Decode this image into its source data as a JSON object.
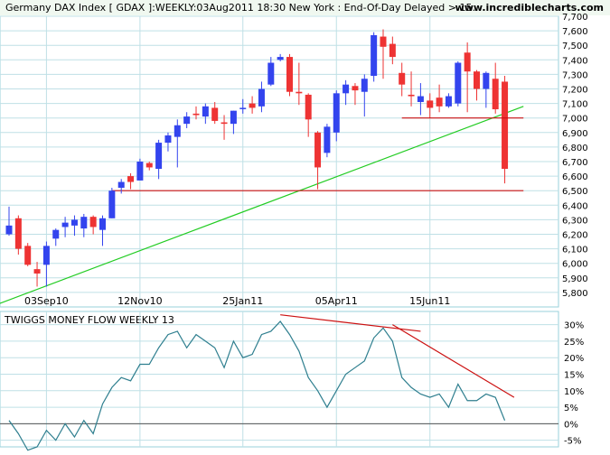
{
  "header": {
    "title": "Germany DAX Index [ GDAX ]:WEEKLY:03Aug2011 18:30 New York : End-Of-Day Delayed > 15..",
    "brand": "www.incrediblecharts.com"
  },
  "colors": {
    "up": "#3344ee",
    "down": "#ee3333",
    "trendline": "#22cc22",
    "support": "#cc1111",
    "indicator": "#2f7f8f",
    "grid": "#bfe0e6",
    "frame": "#9ad0db",
    "header_bg": "#f0f8f0"
  },
  "chart_data": [
    {
      "type": "candlestick",
      "ylim": [
        5700,
        7700
      ],
      "yticks": [
        5800,
        5900,
        6000,
        6100,
        6200,
        6300,
        6400,
        6500,
        6600,
        6700,
        6800,
        6900,
        7000,
        7100,
        7200,
        7300,
        7400,
        7500,
        7600,
        7700
      ],
      "ytick_labels": [
        "5,800",
        "5,900",
        "6,000",
        "6,100",
        "6,200",
        "6,300",
        "6,400",
        "6,500",
        "6,600",
        "6,700",
        "6,800",
        "6,900",
        "7,000",
        "7,100",
        "7,200",
        "7,300",
        "7,400",
        "7,500",
        "7,600",
        "7,700"
      ],
      "xtick_labels": [
        {
          "label": "03Sep10",
          "index": 4
        },
        {
          "label": "12Nov10",
          "index": 14
        },
        {
          "label": "25Jan11",
          "index": 25
        },
        {
          "label": "05Apr11",
          "index": 35
        },
        {
          "label": "15Jun11",
          "index": 45
        }
      ],
      "candles": [
        {
          "o": 6200,
          "h": 6390,
          "l": 6190,
          "c": 6260
        },
        {
          "o": 6310,
          "h": 6330,
          "l": 6060,
          "c": 6100
        },
        {
          "o": 6120,
          "h": 6140,
          "l": 5980,
          "c": 5990
        },
        {
          "o": 5960,
          "h": 6010,
          "l": 5840,
          "c": 5930
        },
        {
          "o": 5990,
          "h": 6150,
          "l": 5840,
          "c": 6120
        },
        {
          "o": 6170,
          "h": 6240,
          "l": 6120,
          "c": 6230
        },
        {
          "o": 6250,
          "h": 6320,
          "l": 6180,
          "c": 6280
        },
        {
          "o": 6260,
          "h": 6330,
          "l": 6190,
          "c": 6300
        },
        {
          "o": 6240,
          "h": 6340,
          "l": 6180,
          "c": 6320
        },
        {
          "o": 6320,
          "h": 6330,
          "l": 6200,
          "c": 6250
        },
        {
          "o": 6230,
          "h": 6330,
          "l": 6120,
          "c": 6310
        },
        {
          "o": 6310,
          "h": 6520,
          "l": 6310,
          "c": 6500
        },
        {
          "o": 6520,
          "h": 6580,
          "l": 6480,
          "c": 6560
        },
        {
          "o": 6600,
          "h": 6620,
          "l": 6510,
          "c": 6560
        },
        {
          "o": 6570,
          "h": 6720,
          "l": 6570,
          "c": 6700
        },
        {
          "o": 6690,
          "h": 6700,
          "l": 6640,
          "c": 6660
        },
        {
          "o": 6650,
          "h": 6850,
          "l": 6580,
          "c": 6830
        },
        {
          "o": 6830,
          "h": 6900,
          "l": 6770,
          "c": 6880
        },
        {
          "o": 6870,
          "h": 6990,
          "l": 6660,
          "c": 6950
        },
        {
          "o": 6960,
          "h": 7040,
          "l": 6930,
          "c": 7010
        },
        {
          "o": 7030,
          "h": 7080,
          "l": 6990,
          "c": 7020
        },
        {
          "o": 7010,
          "h": 7100,
          "l": 6960,
          "c": 7080
        },
        {
          "o": 7070,
          "h": 7110,
          "l": 6960,
          "c": 6980
        },
        {
          "o": 6970,
          "h": 7020,
          "l": 6850,
          "c": 6960
        },
        {
          "o": 6960,
          "h": 7050,
          "l": 6890,
          "c": 7050
        },
        {
          "o": 7070,
          "h": 7130,
          "l": 7030,
          "c": 7070
        },
        {
          "o": 7100,
          "h": 7150,
          "l": 7030,
          "c": 7070
        },
        {
          "o": 7080,
          "h": 7250,
          "l": 7040,
          "c": 7200
        },
        {
          "o": 7230,
          "h": 7420,
          "l": 7220,
          "c": 7380
        },
        {
          "o": 7400,
          "h": 7440,
          "l": 7390,
          "c": 7420
        },
        {
          "o": 7420,
          "h": 7440,
          "l": 7150,
          "c": 7180
        },
        {
          "o": 7180,
          "h": 7380,
          "l": 7090,
          "c": 7170
        },
        {
          "o": 7160,
          "h": 7170,
          "l": 6870,
          "c": 6990
        },
        {
          "o": 6900,
          "h": 6910,
          "l": 6510,
          "c": 6660
        },
        {
          "o": 6760,
          "h": 6960,
          "l": 6730,
          "c": 6940
        },
        {
          "o": 6900,
          "h": 7190,
          "l": 6840,
          "c": 7170
        },
        {
          "o": 7170,
          "h": 7260,
          "l": 7090,
          "c": 7230
        },
        {
          "o": 7220,
          "h": 7240,
          "l": 7090,
          "c": 7190
        },
        {
          "o": 7180,
          "h": 7300,
          "l": 7010,
          "c": 7270
        },
        {
          "o": 7290,
          "h": 7590,
          "l": 7250,
          "c": 7570
        },
        {
          "o": 7560,
          "h": 7610,
          "l": 7270,
          "c": 7490
        },
        {
          "o": 7510,
          "h": 7560,
          "l": 7370,
          "c": 7420
        },
        {
          "o": 7310,
          "h": 7380,
          "l": 7150,
          "c": 7230
        },
        {
          "o": 7160,
          "h": 7320,
          "l": 7080,
          "c": 7150
        },
        {
          "o": 7110,
          "h": 7240,
          "l": 7020,
          "c": 7150
        },
        {
          "o": 7120,
          "h": 7170,
          "l": 7000,
          "c": 7070
        },
        {
          "o": 7140,
          "h": 7230,
          "l": 7040,
          "c": 7080
        },
        {
          "o": 7080,
          "h": 7170,
          "l": 7070,
          "c": 7150
        },
        {
          "o": 7100,
          "h": 7390,
          "l": 7080,
          "c": 7380
        },
        {
          "o": 7450,
          "h": 7520,
          "l": 7040,
          "c": 7320
        },
        {
          "o": 7320,
          "h": 7330,
          "l": 7120,
          "c": 7200
        },
        {
          "o": 7200,
          "h": 7320,
          "l": 7070,
          "c": 7310
        },
        {
          "o": 7270,
          "h": 7380,
          "l": 7030,
          "c": 7060
        },
        {
          "o": 7250,
          "h": 7290,
          "l": 6550,
          "c": 6650
        }
      ],
      "trendline": {
        "from": {
          "index": -2,
          "value": 5700
        },
        "to": {
          "index": 55,
          "value": 7080
        }
      },
      "support_line": {
        "value": 6500,
        "from_index": 11,
        "to_index": 55
      },
      "neckline": {
        "value": 7000,
        "from_index": 42,
        "to_index": 55
      }
    },
    {
      "type": "line",
      "title": "TWIGGS MONEY FLOW WEEKLY 13",
      "ylim": [
        -7,
        34
      ],
      "yticks": [
        -5,
        0,
        5,
        10,
        15,
        20,
        25,
        30
      ],
      "ytick_labels": [
        "-5%",
        "0%",
        "5%",
        "10%",
        "15%",
        "20%",
        "25%",
        "30%"
      ],
      "zero_line": 0,
      "series": [
        {
          "values": [
            1,
            -3,
            -8,
            -7,
            -2,
            -5,
            0,
            -4,
            1,
            -3,
            6,
            11,
            14,
            13,
            18,
            18,
            23,
            27,
            28,
            23,
            27,
            25,
            23,
            17,
            25,
            20,
            21,
            27,
            28,
            31,
            27,
            22,
            14,
            10,
            5,
            10,
            15,
            17,
            19,
            26,
            29,
            25,
            14,
            11,
            9,
            8,
            9,
            5,
            12,
            7,
            7,
            9,
            8,
            1
          ],
          "divergence_lines": [
            {
              "from": {
                "index": 29,
                "value": 33
              },
              "to": {
                "index": 44,
                "value": 28
              }
            },
            {
              "from": {
                "index": 41,
                "value": 30
              },
              "to": {
                "index": 54,
                "value": 8
              }
            }
          ]
        }
      ]
    }
  ]
}
